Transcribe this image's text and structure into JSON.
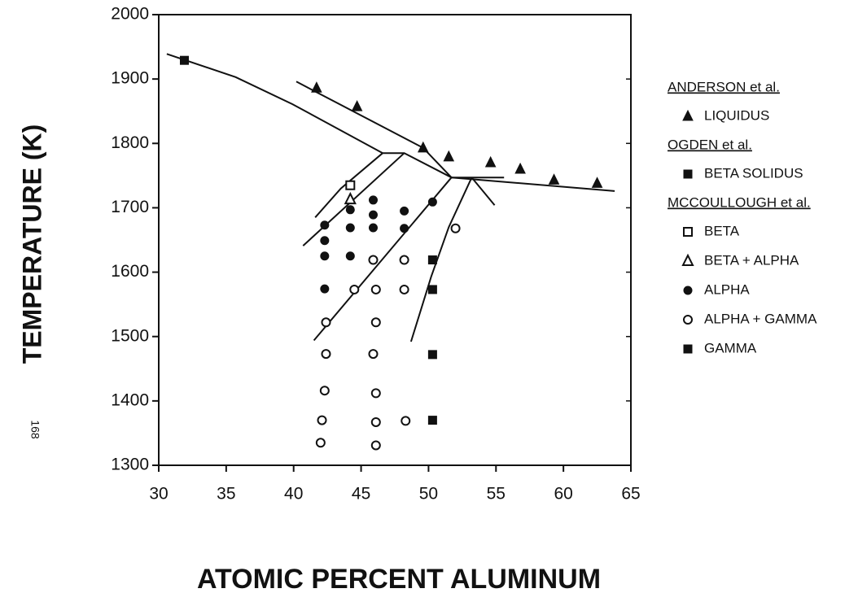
{
  "chart_data": {
    "type": "scatter",
    "xlabel": "ATOMIC PERCENT ALUMINUM",
    "ylabel": "TEMPERATURE (K)",
    "page_number": "168",
    "xlim": [
      30,
      65
    ],
    "ylim": [
      1300,
      2000
    ],
    "xticks": [
      30,
      35,
      40,
      45,
      50,
      55,
      60,
      65
    ],
    "yticks": [
      1300,
      1400,
      1500,
      1600,
      1700,
      1800,
      1900,
      2000
    ],
    "boundaries": [
      {
        "x": [
          30.6,
          35.7,
          39.9,
          46.6
        ],
        "y": [
          1939,
          1903,
          1861,
          1785
        ]
      },
      {
        "x": [
          40.2,
          49.6,
          51.7
        ],
        "y": [
          1896,
          1793,
          1747
        ]
      },
      {
        "x": [
          51.7,
          63.8
        ],
        "y": [
          1747,
          1726
        ]
      },
      {
        "x": [
          46.6,
          48.2,
          51.7
        ],
        "y": [
          1785,
          1785,
          1747
        ]
      },
      {
        "x": [
          51.7,
          55.6
        ],
        "y": [
          1747,
          1747
        ]
      },
      {
        "x": [
          46.6,
          43.5,
          41.6
        ],
        "y": [
          1785,
          1730,
          1685
        ]
      },
      {
        "x": [
          48.2,
          40.7
        ],
        "y": [
          1785,
          1641
        ]
      },
      {
        "x": [
          51.7,
          41.5
        ],
        "y": [
          1747,
          1494
        ]
      },
      {
        "x": [
          53.2,
          51.5,
          50.2,
          48.7
        ],
        "y": [
          1747,
          1670,
          1593,
          1492
        ]
      },
      {
        "x": [
          53.2,
          54.9
        ],
        "y": [
          1747,
          1704
        ]
      }
    ],
    "groups": [
      {
        "title": "ANDERSON et al.",
        "series": [
          {
            "name": "LIQUIDUS",
            "marker": "triangle",
            "color": "#111111",
            "x": [
              41.7,
              44.7,
              49.6,
              51.5,
              54.6,
              56.8,
              59.3,
              62.5
            ],
            "values": [
              1886,
              1857,
              1793,
              1779,
              1770,
              1760,
              1743,
              1738
            ]
          }
        ]
      },
      {
        "title": "OGDEN et al.",
        "series": [
          {
            "name": "BETA SOLIDUS",
            "marker": "square",
            "color": "#111111",
            "x": [
              31.9
            ],
            "values": [
              1929
            ]
          }
        ]
      },
      {
        "title": "MCCOULLOUGH et al.",
        "series": [
          {
            "name": "BETA",
            "marker": "open-square",
            "color": "#111111",
            "x": [
              44.2
            ],
            "values": [
              1735
            ]
          },
          {
            "name": "BETA + ALPHA",
            "marker": "open-triangle",
            "color": "#111111",
            "x": [
              44.2
            ],
            "values": [
              1713
            ]
          },
          {
            "name": "ALPHA",
            "marker": "circle",
            "color": "#111111",
            "x": [
              42.3,
              42.3,
              42.3,
              42.3,
              44.2,
              44.2,
              44.2,
              45.9,
              45.9,
              45.9,
              48.2,
              48.2,
              50.3
            ],
            "values": [
              1673,
              1649,
              1625,
              1574,
              1697,
              1669,
              1625,
              1712,
              1689,
              1669,
              1695,
              1668,
              1709
            ]
          },
          {
            "name": "ALPHA + GAMMA",
            "marker": "open-circle",
            "color": "#111111",
            "x": [
              52.0,
              45.9,
              48.2,
              44.5,
              46.1,
              48.2,
              42.4,
              46.1,
              42.4,
              45.9,
              42.3,
              46.1,
              42.1,
              46.1,
              48.3,
              42.0,
              46.1
            ],
            "values": [
              1668,
              1619,
              1619,
              1573,
              1573,
              1573,
              1522,
              1522,
              1473,
              1473,
              1416,
              1412,
              1370,
              1367,
              1369,
              1335,
              1331
            ]
          },
          {
            "name": "GAMMA",
            "marker": "square",
            "color": "#111111",
            "x": [
              50.3,
              50.3,
              50.3,
              50.3
            ],
            "values": [
              1619,
              1573,
              1472,
              1370
            ]
          }
        ]
      }
    ]
  }
}
